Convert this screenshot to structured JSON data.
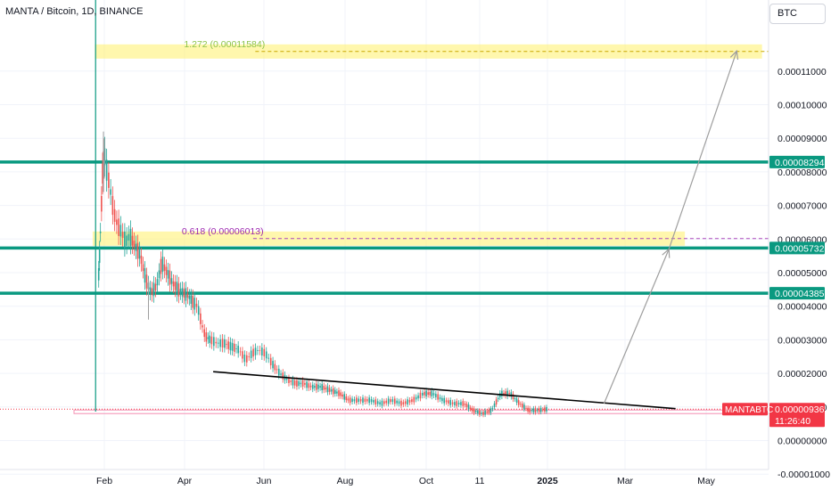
{
  "header": {
    "title": "MANTA / Bitcoin, 1D, BINANCE",
    "currency": "BTC"
  },
  "colors": {
    "up": "#26a69a",
    "down": "#ef5350",
    "level_line": "#0a9980",
    "fib_zone": "#fff176",
    "trendline": "#000000",
    "projection": "#9e9e9e",
    "price_tag": "#f23645"
  },
  "chart_data": {
    "type": "candlestick",
    "symbol": "MANTABTC",
    "interval": "1D",
    "exchange": "BINANCE",
    "y_axis": {
      "min": -1e-05,
      "max": 0.00011,
      "ticks": [
        "0.00011000",
        "0.00010000",
        "0.00009000",
        "0.00008000",
        "0.00007000",
        "0.00006000",
        "0.00005000",
        "0.00004000",
        "0.00003000",
        "0.00002000",
        "0.00001000",
        "0.00000000",
        "-0.00001000"
      ]
    },
    "x_axis": {
      "labels": [
        "Feb",
        "Apr",
        "Jun",
        "Aug",
        "Oct",
        "11",
        "2025",
        "Mar",
        "May"
      ]
    },
    "series_close": [
      [
        "2024-01-18",
        4.7e-05
      ],
      [
        "2024-01-20",
        5.2e-05
      ],
      [
        "2024-01-22",
        5.8e-05
      ],
      [
        "2024-01-24",
        6.6e-05
      ],
      [
        "2024-01-27",
        7.5e-05
      ],
      [
        "2024-01-29",
        8.4e-05
      ],
      [
        "2024-01-31",
        8.7e-05
      ],
      [
        "2024-02-02",
        8.2e-05
      ],
      [
        "2024-02-05",
        7.6e-05
      ],
      [
        "2024-02-08",
        6.8e-05
      ],
      [
        "2024-02-11",
        6.4e-05
      ],
      [
        "2024-02-14",
        6.2e-05
      ],
      [
        "2024-02-17",
        5.9e-05
      ],
      [
        "2024-02-20",
        6.1e-05
      ],
      [
        "2024-02-24",
        5.8e-05
      ],
      [
        "2024-02-28",
        5.5e-05
      ],
      [
        "2024-03-03",
        4.8e-05
      ],
      [
        "2024-03-07",
        4.4e-05
      ],
      [
        "2024-03-11",
        4.6e-05
      ],
      [
        "2024-03-15",
        5.3e-05
      ],
      [
        "2024-03-19",
        5e-05
      ],
      [
        "2024-03-23",
        4.7e-05
      ],
      [
        "2024-03-27",
        4.5e-05
      ],
      [
        "2024-03-31",
        4.4e-05
      ],
      [
        "2024-04-04",
        4.3e-05
      ],
      [
        "2024-04-08",
        4.1e-05
      ],
      [
        "2024-04-11",
        4e-05
      ],
      [
        "2024-04-14",
        3.5e-05
      ],
      [
        "2024-04-17",
        3.1e-05
      ],
      [
        "2024-04-21",
        3e-05
      ],
      [
        "2024-04-26",
        2.9e-05
      ],
      [
        "2024-05-01",
        2.9e-05
      ],
      [
        "2024-05-07",
        2.8e-05
      ],
      [
        "2024-05-13",
        2.7e-05
      ],
      [
        "2024-05-18",
        2.4e-05
      ],
      [
        "2024-05-23",
        2.6e-05
      ],
      [
        "2024-05-28",
        2.7e-05
      ],
      [
        "2024-06-02",
        2.6e-05
      ],
      [
        "2024-06-07",
        2.3e-05
      ],
      [
        "2024-06-13",
        2e-05
      ],
      [
        "2024-06-19",
        1.8e-05
      ],
      [
        "2024-06-25",
        1.7e-05
      ],
      [
        "2024-07-01",
        1.7e-05
      ],
      [
        "2024-07-07",
        1.6e-05
      ],
      [
        "2024-07-14",
        1.6e-05
      ],
      [
        "2024-07-21",
        1.5e-05
      ],
      [
        "2024-07-28",
        1.4e-05
      ],
      [
        "2024-08-04",
        1.2e-05
      ],
      [
        "2024-08-12",
        1.2e-05
      ],
      [
        "2024-08-20",
        1.2e-05
      ],
      [
        "2024-08-28",
        1.1e-05
      ],
      [
        "2024-09-05",
        1.2e-05
      ],
      [
        "2024-09-13",
        1.1e-05
      ],
      [
        "2024-09-21",
        1.2e-05
      ],
      [
        "2024-09-29",
        1.4e-05
      ],
      [
        "2024-10-06",
        1.4e-05
      ],
      [
        "2024-10-14",
        1.2e-05
      ],
      [
        "2024-10-22",
        1.1e-05
      ],
      [
        "2024-10-30",
        1.1e-05
      ],
      [
        "2024-11-06",
        9e-06
      ],
      [
        "2024-11-13",
        8e-06
      ],
      [
        "2024-11-20",
        9e-06
      ],
      [
        "2024-11-27",
        1.4e-05
      ],
      [
        "2024-12-04",
        1.4e-05
      ],
      [
        "2024-12-11",
        1.1e-05
      ],
      [
        "2024-12-18",
        9e-06
      ],
      [
        "2024-12-25",
        9e-06
      ],
      [
        "2025-01-01",
        9.36e-06
      ]
    ],
    "horizontal_levels": [
      {
        "label": "0.00008294",
        "value": 8.294e-05
      },
      {
        "label": "0.00005732",
        "value": 5.732e-05
      },
      {
        "label": "0.00004385",
        "value": 4.385e-05
      }
    ],
    "fib_zones": [
      {
        "label": "1.272 (0.00011584)",
        "value": 0.00011584,
        "start": "2024-01-10",
        "end": "2025-06-12"
      },
      {
        "label": "0.618 (0.00006013)",
        "value": 6.013e-05,
        "start": "2024-01-05",
        "end": "2025-04-15"
      }
    ],
    "trendline": {
      "start": [
        "2024-04-23",
        2.05e-05
      ],
      "end": [
        "2025-04-08",
        9.5e-06
      ]
    },
    "projection_arrows": [
      {
        "start": [
          "2025-02-13",
          1.1e-05
        ],
        "end": [
          "2025-04-03",
          5.7e-05
        ]
      },
      {
        "start": [
          "2025-04-03",
          5.7e-05
        ],
        "end": [
          "2025-05-24",
          0.000116
        ]
      }
    ],
    "current_price": {
      "symbol_tag": "MANTABTC",
      "value": "0.00000936",
      "countdown": "11:26:40",
      "raw": 9.36e-06
    },
    "listing_marker": "2024-01-18",
    "grid": true
  }
}
